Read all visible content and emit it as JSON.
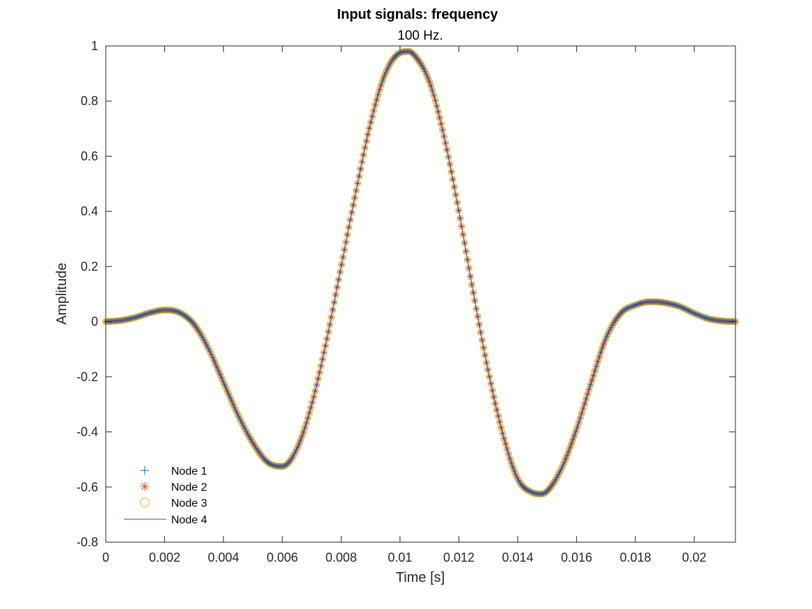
{
  "chart_data": {
    "type": "line",
    "title": "Input signals: frequency",
    "subtitle": "100 Hz.",
    "xlabel": "Time [s]",
    "ylabel": "Amplitude",
    "xlim": [
      0,
      0.0214
    ],
    "ylim": [
      -0.8,
      1
    ],
    "xticks": [
      0,
      0.002,
      0.004,
      0.006,
      0.008,
      0.01,
      0.012,
      0.014,
      0.016,
      0.018,
      0.02
    ],
    "xtick_labels": [
      "0",
      "0.002",
      "0.004",
      "0.006",
      "0.008",
      "0.01",
      "0.012",
      "0.014",
      "0.016",
      "0.018",
      "0.02"
    ],
    "yticks": [
      -0.8,
      -0.6,
      -0.4,
      -0.2,
      0,
      0.2,
      0.4,
      0.6,
      0.8,
      1
    ],
    "ytick_labels": [
      "-0.8",
      "-0.6",
      "-0.4",
      "-0.2",
      "0",
      "0.2",
      "0.4",
      "0.6",
      "0.8",
      "1"
    ],
    "grid": false,
    "legend_position": "bottom-left",
    "x": [
      0,
      0.0005,
      0.001,
      0.0015,
      0.002,
      0.0025,
      0.003,
      0.0035,
      0.004,
      0.0045,
      0.005,
      0.0055,
      0.006,
      0.0065,
      0.007,
      0.0075,
      0.008,
      0.0085,
      0.009,
      0.0095,
      0.01,
      0.0103,
      0.0105,
      0.011,
      0.0115,
      0.012,
      0.0125,
      0.013,
      0.0135,
      0.014,
      0.0145,
      0.0148,
      0.015,
      0.0155,
      0.016,
      0.0165,
      0.017,
      0.0175,
      0.018,
      0.0185,
      0.0189,
      0.0195,
      0.02,
      0.0205,
      0.021,
      0.0214
    ],
    "series": [
      {
        "name": "Node 1",
        "marker": "plus",
        "color": "#0072BD",
        "y": [
          0,
          0.004,
          0.015,
          0.032,
          0.042,
          0.033,
          -0.01,
          -0.1,
          -0.22,
          -0.34,
          -0.44,
          -0.51,
          -0.525,
          -0.46,
          -0.3,
          -0.07,
          0.2,
          0.47,
          0.72,
          0.9,
          0.975,
          0.98,
          0.965,
          0.87,
          0.67,
          0.4,
          0.1,
          -0.18,
          -0.41,
          -0.57,
          -0.62,
          -0.625,
          -0.615,
          -0.53,
          -0.39,
          -0.22,
          -0.06,
          0.03,
          0.06,
          0.072,
          0.07,
          0.055,
          0.03,
          0.01,
          0.002,
          0
        ]
      },
      {
        "name": "Node 2",
        "marker": "asterisk",
        "color": "#D95319",
        "y": [
          0,
          0.004,
          0.015,
          0.032,
          0.042,
          0.033,
          -0.01,
          -0.1,
          -0.22,
          -0.34,
          -0.44,
          -0.51,
          -0.525,
          -0.46,
          -0.3,
          -0.07,
          0.2,
          0.47,
          0.72,
          0.9,
          0.975,
          0.98,
          0.965,
          0.87,
          0.67,
          0.4,
          0.1,
          -0.18,
          -0.41,
          -0.57,
          -0.62,
          -0.625,
          -0.615,
          -0.53,
          -0.39,
          -0.22,
          -0.06,
          0.03,
          0.06,
          0.072,
          0.07,
          0.055,
          0.03,
          0.01,
          0.002,
          0
        ]
      },
      {
        "name": "Node 3",
        "marker": "circle",
        "color": "#EDB120",
        "y": [
          0,
          0.004,
          0.015,
          0.032,
          0.042,
          0.033,
          -0.01,
          -0.1,
          -0.22,
          -0.34,
          -0.44,
          -0.51,
          -0.525,
          -0.46,
          -0.3,
          -0.07,
          0.2,
          0.47,
          0.72,
          0.9,
          0.975,
          0.98,
          0.965,
          0.87,
          0.67,
          0.4,
          0.1,
          -0.18,
          -0.41,
          -0.57,
          -0.62,
          -0.625,
          -0.615,
          -0.53,
          -0.39,
          -0.22,
          -0.06,
          0.03,
          0.06,
          0.072,
          0.07,
          0.055,
          0.03,
          0.01,
          0.002,
          0
        ]
      },
      {
        "name": "Node 4",
        "marker": "line",
        "color": "#7E2F8E",
        "y": [
          0,
          0.004,
          0.015,
          0.032,
          0.042,
          0.033,
          -0.01,
          -0.1,
          -0.22,
          -0.34,
          -0.44,
          -0.51,
          -0.525,
          -0.46,
          -0.3,
          -0.07,
          0.2,
          0.47,
          0.72,
          0.9,
          0.975,
          0.98,
          0.965,
          0.87,
          0.67,
          0.4,
          0.1,
          -0.18,
          -0.41,
          -0.57,
          -0.62,
          -0.625,
          -0.615,
          -0.53,
          -0.39,
          -0.22,
          -0.06,
          0.03,
          0.06,
          0.072,
          0.07,
          0.055,
          0.03,
          0.01,
          0.002,
          0
        ]
      }
    ]
  }
}
